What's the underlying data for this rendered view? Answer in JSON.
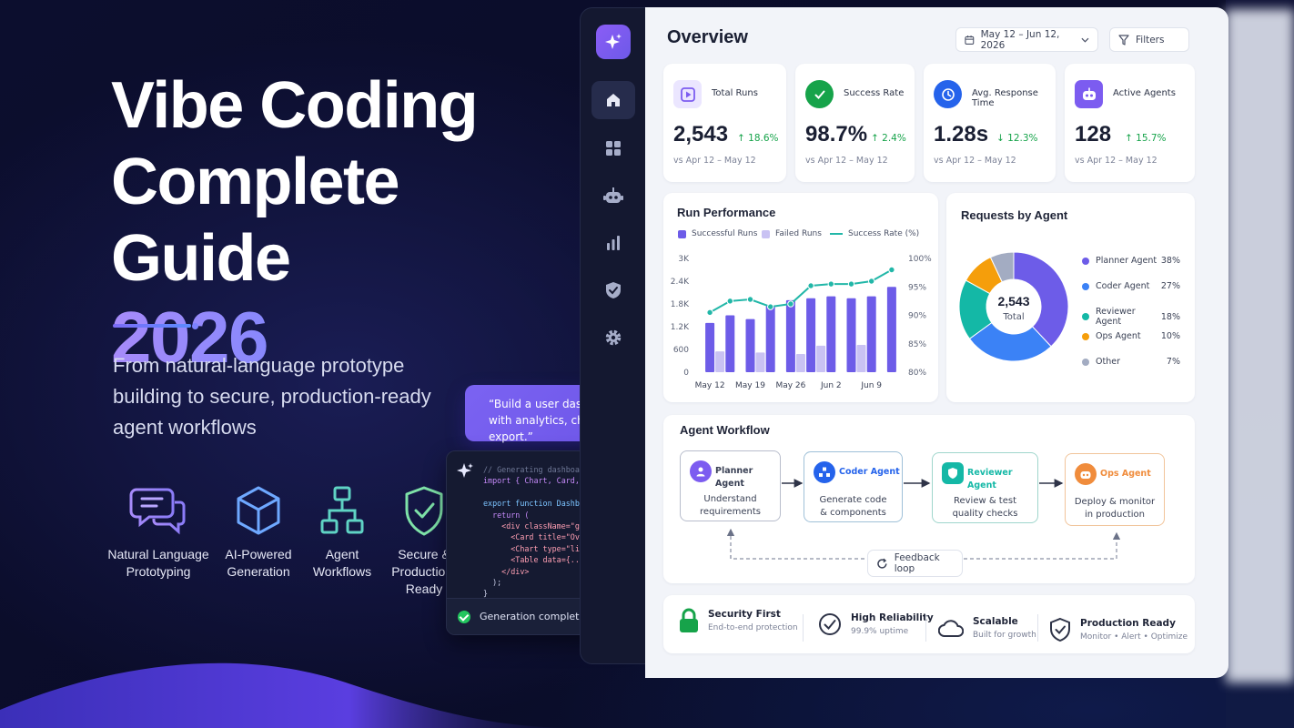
{
  "hero": {
    "title_line1": "Vibe Coding",
    "title_line2": "Complete Guide",
    "year": "2026",
    "subtitle": "From natural-language prototype building to secure, production-ready agent workflows",
    "features": [
      {
        "icon": "chat-bubbles-icon",
        "label": "Natural Language Prototyping"
      },
      {
        "icon": "cube-icon",
        "label": "AI-Powered Generation"
      },
      {
        "icon": "workflow-tree-icon",
        "label": "Agent Workflows"
      },
      {
        "icon": "shield-check-icon",
        "label": "Secure & Production-Ready"
      }
    ]
  },
  "prompt_bubble": {
    "text": "“Build a user dashboard with analytics, charts, and export.”"
  },
  "code_panel": {
    "lines": [
      "// Generating dashboard...",
      "import { Chart, Card, Table } from 'ui';",
      "",
      "export function Dashboard() {",
      "  return (",
      "    <div className=\"grid\">",
      "      <Card title=\"Overview\" />",
      "      <Chart type=\"line\" data={...} />",
      "      <Table data={...} />",
      "    </div>",
      "  );",
      "}"
    ],
    "status": "Generation complete"
  },
  "sidebar": {
    "items": [
      {
        "icon": "home-icon",
        "active": true
      },
      {
        "icon": "grid-icon",
        "active": false
      },
      {
        "icon": "robot-icon",
        "active": false
      },
      {
        "icon": "bar-chart-icon",
        "active": false
      },
      {
        "icon": "shield-check-icon",
        "active": false
      },
      {
        "icon": "gear-icon",
        "active": false
      }
    ]
  },
  "header": {
    "title": "Overview",
    "date_range": "May 12 – Jun 12, 2026",
    "filters_label": "Filters"
  },
  "kpis": [
    {
      "label": "Total Runs",
      "value": "2,543",
      "delta": "18.6%",
      "direction": "up",
      "compare": "vs Apr 12 – May 12",
      "icon": "play-icon",
      "color": "#7c5cf0"
    },
    {
      "label": "Success Rate",
      "value": "98.7%",
      "delta": "2.4%",
      "direction": "up",
      "compare": "vs Apr 12 – May 12",
      "icon": "check-circle-icon",
      "color": "#16a34a"
    },
    {
      "label": "Avg. Response Time",
      "value": "1.28s",
      "delta": "12.3%",
      "direction": "down",
      "compare": "vs Apr 12 – May 12",
      "icon": "clock-icon",
      "color": "#2563eb"
    },
    {
      "label": "Active Agents",
      "value": "128",
      "delta": "15.7%",
      "direction": "up",
      "compare": "vs Apr 12 – May 12",
      "icon": "robot-icon",
      "color": "#7c5cf0"
    }
  ],
  "run_performance": {
    "title": "Run Performance",
    "legend": [
      "Successful Runs",
      "Failed Runs",
      "Success Rate (%)"
    ]
  },
  "chart_data": [
    {
      "type": "bar",
      "title": "Run Performance",
      "categories": [
        "May 12",
        "",
        "May 19",
        "",
        "May 26",
        "",
        "Jun 2",
        "",
        "Jun 9",
        ""
      ],
      "x_tick_labels": [
        "May 12",
        "May 19",
        "May 26",
        "Jun 2",
        "Jun 9"
      ],
      "y_left": {
        "ticks": [
          "0",
          "600",
          "1.2K",
          "1.8K",
          "2.4K",
          "3K"
        ],
        "lim": [
          0,
          3000
        ]
      },
      "y_right": {
        "ticks": [
          "80%",
          "85%",
          "90%",
          "95%",
          "100%"
        ],
        "lim": [
          80,
          100
        ]
      },
      "series": [
        {
          "name": "Successful Runs",
          "kind": "bar",
          "color": "#6d5ce8",
          "values": [
            1300,
            1500,
            1400,
            1750,
            1900,
            1950,
            2000,
            1950,
            2000,
            2250
          ]
        },
        {
          "name": "Failed Runs",
          "kind": "bar",
          "color": "#c9c2f3",
          "values": [
            550,
            0,
            520,
            0,
            480,
            700,
            0,
            720,
            0,
            0
          ]
        },
        {
          "name": "Success Rate (%)",
          "kind": "line",
          "color": "#22b7a8",
          "values": [
            90.5,
            92.5,
            92.8,
            91.5,
            92.0,
            95.2,
            95.5,
            95.5,
            96.0,
            98.0
          ]
        }
      ]
    },
    {
      "type": "pie",
      "title": "Requests by Agent",
      "center_value": "2,543",
      "center_label": "Total",
      "slices": [
        {
          "name": "Planner Agent",
          "value": 38,
          "label": "38%",
          "color": "#6d5ce8"
        },
        {
          "name": "Coder Agent",
          "value": 27,
          "label": "27%",
          "color": "#3b82f6"
        },
        {
          "name": "Reviewer Agent",
          "value": 18,
          "label": "18%",
          "color": "#14b8a6"
        },
        {
          "name": "Ops Agent",
          "value": 10,
          "label": "10%",
          "color": "#f59e0b"
        },
        {
          "name": "Other",
          "value": 7,
          "label": "7%",
          "color": "#a3acc2"
        }
      ]
    }
  ],
  "workflow": {
    "title": "Agent Workflow",
    "steps": [
      {
        "title": "Planner Agent",
        "desc1": "Understand",
        "desc2": "requirements",
        "icon": "user-icon",
        "color": "#7c5cf0",
        "border": "#b8bdcc"
      },
      {
        "title": "Coder Agent",
        "desc1": "Generate code",
        "desc2": "& components",
        "icon": "nodes-icon",
        "color": "#2563eb",
        "border": "#9fc0d8"
      },
      {
        "title": "Reviewer Agent",
        "desc1": "Review & test",
        "desc2": "quality checks",
        "icon": "shield-icon",
        "color": "#14b8a6",
        "border": "#9fd6cc"
      },
      {
        "title": "Ops Agent",
        "desc1": "Deploy & monitor",
        "desc2": "in production",
        "icon": "robot-icon",
        "color": "#f08c3c",
        "border": "#f1c49a"
      }
    ],
    "feedback_label": "Feedback loop"
  },
  "footer_features": [
    {
      "title": "Security First",
      "subtitle": "End-to-end protection",
      "icon": "lock-icon"
    },
    {
      "title": "High Reliability",
      "subtitle": "99.9% uptime",
      "icon": "check-circle-icon"
    },
    {
      "title": "Scalable",
      "subtitle": "Built for growth",
      "icon": "cloud-icon"
    },
    {
      "title": "Production Ready",
      "subtitle": "Monitor • Alert • Optimize",
      "icon": "shield-check-icon"
    }
  ]
}
